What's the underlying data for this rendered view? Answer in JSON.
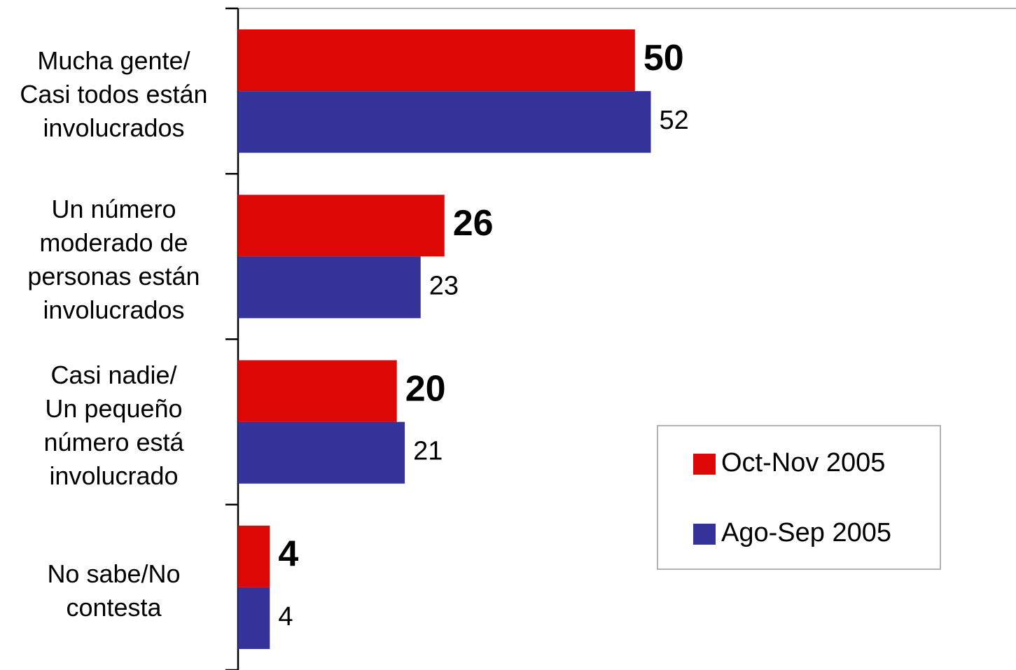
{
  "chart_data": {
    "type": "bar",
    "orientation": "horizontal",
    "categories": [
      "Mucha gente/\nCasi todos están\ninvolucrados",
      "Un número\nmoderado de\npersonas están\ninvolucrados",
      "Casi nadie/\nUn pequeño\nnúmero está\ninvolucrado",
      "No sabe/No\ncontesta"
    ],
    "series": [
      {
        "name": "Oct-Nov 2005",
        "color": "#dd0806",
        "values": [
          50,
          26,
          20,
          4
        ]
      },
      {
        "name": "Ago-Sep 2005",
        "color": "#333399",
        "values": [
          52,
          23,
          21,
          4
        ]
      }
    ],
    "xlim": [
      0,
      98
    ],
    "legend": "lower right"
  }
}
